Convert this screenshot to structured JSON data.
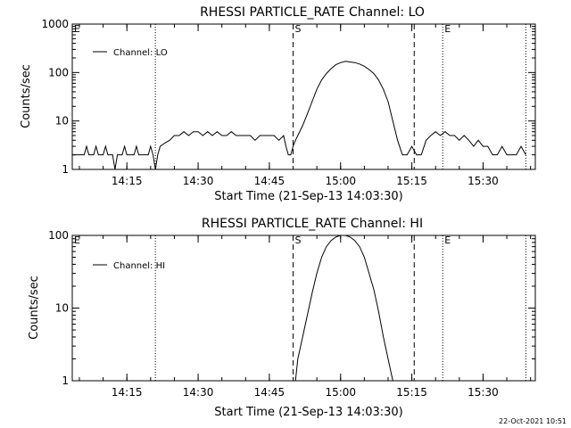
{
  "footer": {
    "timestamp": "22-Oct-2021 10:51"
  },
  "chart_data": [
    {
      "type": "line",
      "title": "RHESSI PARTICLE_RATE Channel: LO",
      "xlabel": "Start Time (21-Sep-13 14:03:30)",
      "ylabel": "Counts/sec",
      "y_scale": "log",
      "ylim": [
        1,
        1000
      ],
      "y_ticks": [
        "1",
        "10",
        "100",
        "1000"
      ],
      "xlim": [
        "14:03:30",
        "15:41:00"
      ],
      "x_ticks": [
        "14:15",
        "14:30",
        "14:45",
        "15:00",
        "15:15",
        "15:30"
      ],
      "legend": {
        "position": "top-left",
        "label": "Channel: LO"
      },
      "markers": [
        {
          "time": "14:03:30",
          "label": "E",
          "style": "dotted"
        },
        {
          "time": "14:21:00",
          "label": "",
          "style": "dotted"
        },
        {
          "time": "14:50:00",
          "label": "S",
          "style": "dashed"
        },
        {
          "time": "15:15:30",
          "label": "",
          "style": "dashed"
        },
        {
          "time": "15:21:30",
          "label": "E",
          "style": "dotted"
        },
        {
          "time": "15:39:00",
          "label": "",
          "style": "dotted"
        }
      ],
      "series": [
        {
          "name": "Channel: LO",
          "points": [
            [
              "14:03:30",
              2
            ],
            [
              "14:06:00",
              2
            ],
            [
              "14:06:30",
              3
            ],
            [
              "14:07:00",
              2
            ],
            [
              "14:08:00",
              2
            ],
            [
              "14:08:30",
              3
            ],
            [
              "14:09:00",
              2
            ],
            [
              "14:10:00",
              2
            ],
            [
              "14:10:30",
              3
            ],
            [
              "14:11:00",
              2
            ],
            [
              "14:12:00",
              2
            ],
            [
              "14:12:30",
              1
            ],
            [
              "14:13:00",
              2
            ],
            [
              "14:14:00",
              2
            ],
            [
              "14:14:30",
              3
            ],
            [
              "14:15:00",
              2
            ],
            [
              "14:16:30",
              2
            ],
            [
              "14:17:00",
              3
            ],
            [
              "14:17:30",
              2
            ],
            [
              "14:19:30",
              2
            ],
            [
              "14:20:00",
              3
            ],
            [
              "14:20:30",
              2
            ],
            [
              "14:21:00",
              1
            ],
            [
              "14:21:30",
              2
            ],
            [
              "14:22:00",
              3
            ],
            [
              "14:23:00",
              3.5
            ],
            [
              "14:24:00",
              4
            ],
            [
              "14:25:00",
              5
            ],
            [
              "14:26:00",
              5
            ],
            [
              "14:27:00",
              6
            ],
            [
              "14:28:00",
              5
            ],
            [
              "14:29:00",
              6
            ],
            [
              "14:30:00",
              6
            ],
            [
              "14:31:00",
              5
            ],
            [
              "14:32:00",
              6
            ],
            [
              "14:33:00",
              5
            ],
            [
              "14:34:00",
              6
            ],
            [
              "14:35:00",
              5
            ],
            [
              "14:36:00",
              5
            ],
            [
              "14:37:00",
              6
            ],
            [
              "14:38:00",
              5
            ],
            [
              "14:39:00",
              5
            ],
            [
              "14:40:00",
              5
            ],
            [
              "14:41:00",
              5
            ],
            [
              "14:42:00",
              4
            ],
            [
              "14:43:00",
              5
            ],
            [
              "14:44:00",
              5
            ],
            [
              "14:45:00",
              5
            ],
            [
              "14:46:00",
              5
            ],
            [
              "14:47:00",
              4
            ],
            [
              "14:48:00",
              5
            ],
            [
              "14:48:30",
              3
            ],
            [
              "14:49:00",
              2
            ],
            [
              "14:49:30",
              2
            ],
            [
              "14:50:00",
              3
            ],
            [
              "14:50:30",
              4
            ],
            [
              "14:51:00",
              5
            ],
            [
              "14:52:00",
              8
            ],
            [
              "14:53:00",
              14
            ],
            [
              "14:54:00",
              25
            ],
            [
              "14:55:00",
              45
            ],
            [
              "14:56:00",
              70
            ],
            [
              "14:57:00",
              95
            ],
            [
              "14:58:00",
              120
            ],
            [
              "14:59:00",
              145
            ],
            [
              "15:00:00",
              160
            ],
            [
              "15:01:00",
              170
            ],
            [
              "15:02:00",
              165
            ],
            [
              "15:03:00",
              160
            ],
            [
              "15:04:00",
              150
            ],
            [
              "15:05:00",
              135
            ],
            [
              "15:06:00",
              115
            ],
            [
              "15:07:00",
              95
            ],
            [
              "15:08:00",
              70
            ],
            [
              "15:09:00",
              45
            ],
            [
              "15:10:00",
              25
            ],
            [
              "15:11:00",
              10
            ],
            [
              "15:12:00",
              4
            ],
            [
              "15:13:00",
              2
            ],
            [
              "15:14:00",
              2
            ],
            [
              "15:15:00",
              3
            ],
            [
              "15:16:00",
              2
            ],
            [
              "15:17:00",
              2
            ],
            [
              "15:18:00",
              4
            ],
            [
              "15:19:00",
              5
            ],
            [
              "15:20:00",
              6
            ],
            [
              "15:21:00",
              5
            ],
            [
              "15:22:00",
              6
            ],
            [
              "15:23:00",
              5
            ],
            [
              "15:24:00",
              5
            ],
            [
              "15:25:00",
              4
            ],
            [
              "15:26:00",
              5
            ],
            [
              "15:27:00",
              4
            ],
            [
              "15:28:00",
              3
            ],
            [
              "15:29:00",
              4
            ],
            [
              "15:30:00",
              3
            ],
            [
              "15:31:00",
              3
            ],
            [
              "15:32:00",
              2
            ],
            [
              "15:33:00",
              2
            ],
            [
              "15:34:00",
              3
            ],
            [
              "15:35:00",
              2
            ],
            [
              "15:36:00",
              2
            ],
            [
              "15:37:00",
              2
            ],
            [
              "15:38:00",
              3
            ],
            [
              "15:39:00",
              2
            ]
          ]
        }
      ]
    },
    {
      "type": "line",
      "title": "RHESSI PARTICLE_RATE Channel: HI",
      "xlabel": "Start Time (21-Sep-13 14:03:30)",
      "ylabel": "Counts/sec",
      "y_scale": "log",
      "ylim": [
        1,
        100
      ],
      "y_ticks": [
        "1",
        "10",
        "100"
      ],
      "xlim": [
        "14:03:30",
        "15:41:00"
      ],
      "x_ticks": [
        "14:15",
        "14:30",
        "14:45",
        "15:00",
        "15:15",
        "15:30"
      ],
      "legend": {
        "position": "top-left",
        "label": "Channel: HI"
      },
      "markers": [
        {
          "time": "14:03:30",
          "label": "E",
          "style": "dotted"
        },
        {
          "time": "14:21:00",
          "label": "",
          "style": "dotted"
        },
        {
          "time": "14:50:00",
          "label": "S",
          "style": "dashed"
        },
        {
          "time": "15:15:30",
          "label": "",
          "style": "dashed"
        },
        {
          "time": "15:21:30",
          "label": "E",
          "style": "dotted"
        },
        {
          "time": "15:39:00",
          "label": "",
          "style": "dotted"
        }
      ],
      "series": [
        {
          "name": "Channel: HI",
          "points": [
            [
              "14:50:30",
              1
            ],
            [
              "14:51:00",
              2
            ],
            [
              "14:52:00",
              4
            ],
            [
              "14:53:00",
              8
            ],
            [
              "14:54:00",
              16
            ],
            [
              "14:55:00",
              30
            ],
            [
              "14:56:00",
              50
            ],
            [
              "14:57:00",
              70
            ],
            [
              "14:58:00",
              85
            ],
            [
              "14:59:00",
              95
            ],
            [
              "15:00:00",
              100
            ],
            [
              "15:01:00",
              100
            ],
            [
              "15:02:00",
              95
            ],
            [
              "15:03:00",
              85
            ],
            [
              "15:04:00",
              70
            ],
            [
              "15:05:00",
              50
            ],
            [
              "15:06:00",
              30
            ],
            [
              "15:07:00",
              18
            ],
            [
              "15:08:00",
              9
            ],
            [
              "15:09:00",
              4
            ],
            [
              "15:10:00",
              2
            ],
            [
              "15:11:00",
              1
            ]
          ]
        }
      ]
    }
  ]
}
